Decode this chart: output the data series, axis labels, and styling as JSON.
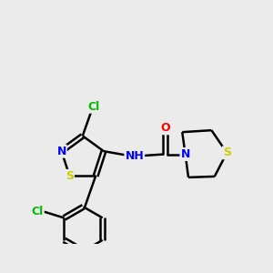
{
  "background_color": "#ebebeb",
  "bond_color": "#000000",
  "atom_colors": {
    "N": "#0000ff",
    "S": "#cccc00",
    "O": "#ff0000",
    "Cl": "#00bb00",
    "C": "#000000",
    "H": "#000000"
  }
}
